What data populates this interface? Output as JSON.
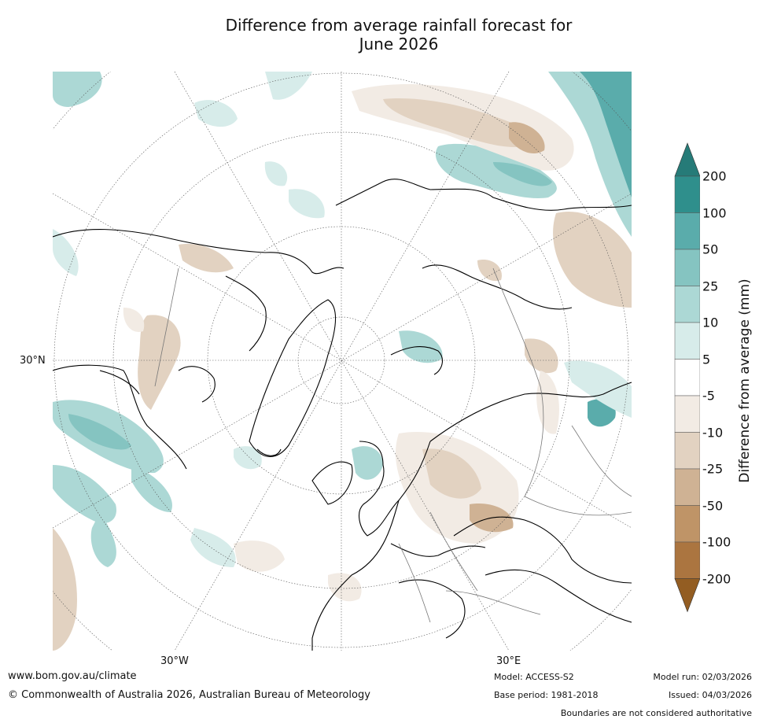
{
  "title_line1": "Difference from average rainfall forecast for",
  "title_line2": "June 2026",
  "map": {
    "lat_label": "30°N",
    "lon_label_west": "30°W",
    "lon_label_east": "30°E",
    "projection": "north-polar-stereographic"
  },
  "colorbar": {
    "title": "Difference from average (mm)",
    "levels": [
      "200",
      "100",
      "50",
      "25",
      "10",
      "5",
      "-5",
      "-10",
      "-25",
      "-50",
      "-100",
      "-200"
    ],
    "colors": [
      "#2f8f8c",
      "#5aacab",
      "#85c4c1",
      "#acd8d5",
      "#d7ecea",
      "#ffffff",
      "#f2ebe4",
      "#e2d2c1",
      "#cfb294",
      "#bf9467",
      "#ab7540"
    ],
    "extend_top_color": "#267b78",
    "extend_bottom_color": "#935d22"
  },
  "footer": {
    "website": "www.bom.gov.au/climate",
    "copyright": "© Commonwealth of Australia 2026, Australian Bureau of Meteorology",
    "model": "Model: ACCESS-S2",
    "base_period": "Base period: 1981-2018",
    "model_run": "Model run: 02/03/2026",
    "issued": "Issued: 04/03/2026",
    "disclaimer": "Boundaries are not considered authoritative"
  }
}
